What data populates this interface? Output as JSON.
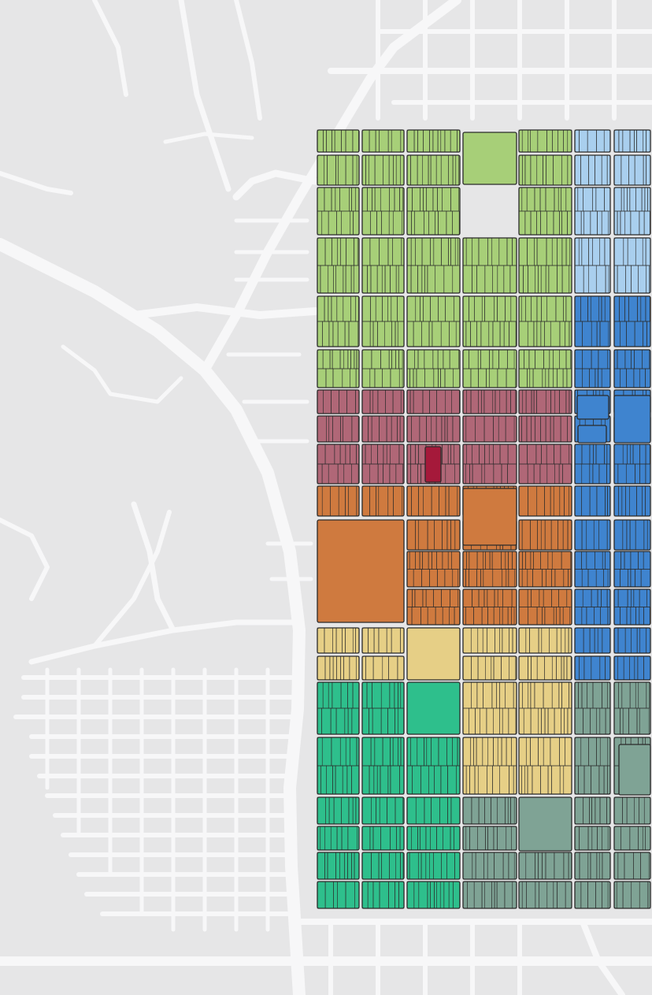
{
  "map": {
    "background": "#e6e6e7",
    "road_color": "#f7f7f8",
    "outline_color": "#2a2a2a",
    "districts": [
      {
        "key": "light-green",
        "fill": "#a7cf78",
        "dark": "#1f5a2e"
      },
      {
        "key": "blue-light",
        "fill": "#a9cfee",
        "dark": "#2f78c4"
      },
      {
        "key": "blue",
        "fill": "#3f84cf",
        "dark": "#1f3f9a"
      },
      {
        "key": "rose",
        "fill": "#b06777",
        "dark": "#a5193a"
      },
      {
        "key": "orange",
        "fill": "#cf7a3f",
        "dark": "#7a3f10"
      },
      {
        "key": "tan",
        "fill": "#e6cf86",
        "dark": "#2f5f5f"
      },
      {
        "key": "teal",
        "fill": "#2ebf8c",
        "dark": "#1f6a5a"
      },
      {
        "key": "slate-green",
        "fill": "#7fa395",
        "dark": "#2f5f5a"
      }
    ]
  }
}
